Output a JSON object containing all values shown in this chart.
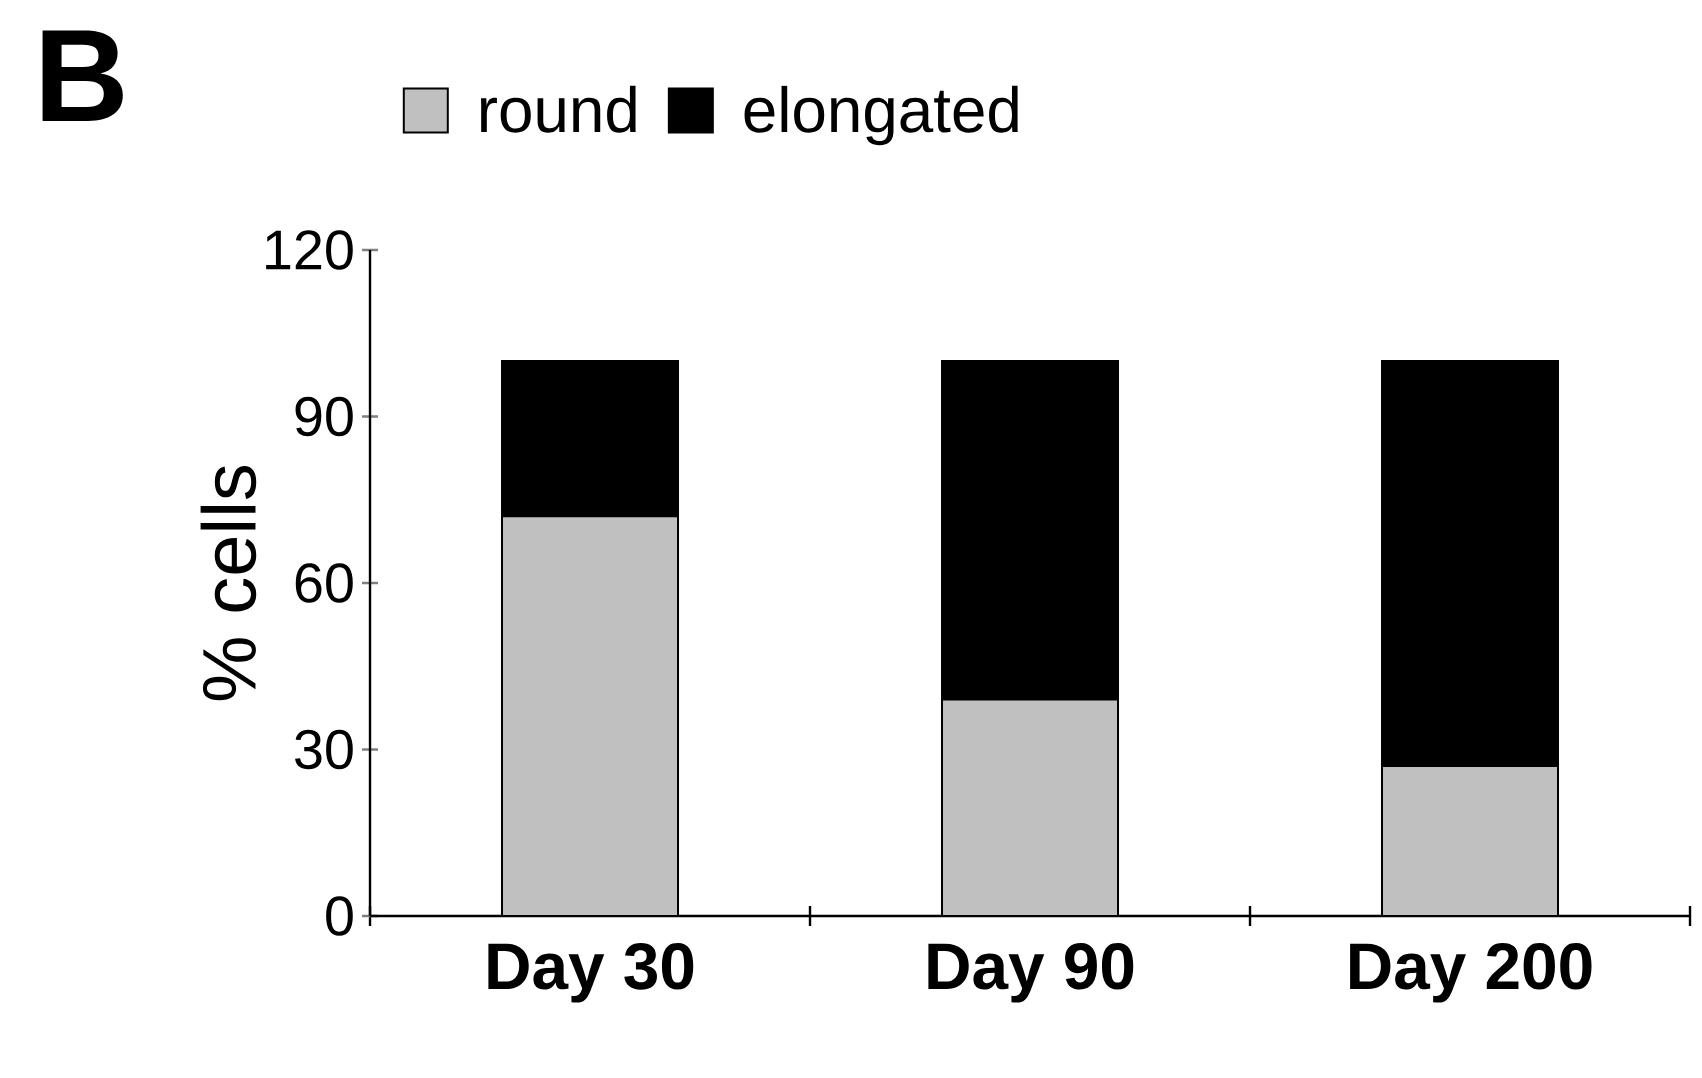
{
  "chart_data": {
    "type": "bar",
    "stacked": true,
    "categories": [
      "Day 30",
      "Day 90",
      "Day 200"
    ],
    "series": [
      {
        "name": "round",
        "color": "#c0c0c0",
        "values": [
          72,
          39,
          27
        ]
      },
      {
        "name": "elongated",
        "color": "#000000",
        "values": [
          28,
          61,
          73
        ]
      }
    ],
    "ylabel": "% cells",
    "ylim": [
      0,
      120
    ],
    "yticks": [
      0,
      30,
      60,
      90,
      120
    ],
    "legend": "top",
    "annotations": [
      "B"
    ]
  }
}
